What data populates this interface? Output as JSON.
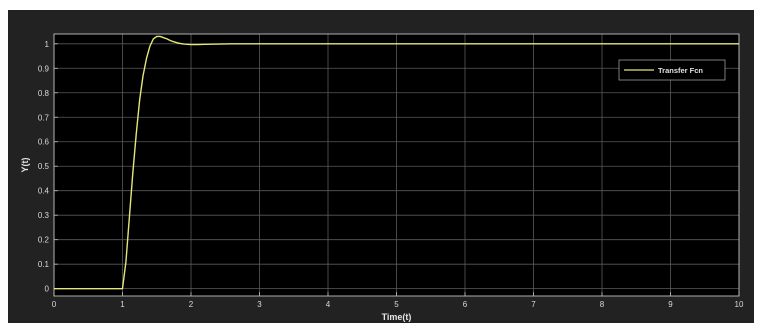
{
  "chart_data": {
    "type": "line",
    "xlabel": "Time(t)",
    "ylabel": "Y(t)",
    "xlim": [
      0,
      10
    ],
    "ylim": [
      -0.03,
      1.04
    ],
    "xticks": [
      "0",
      "1",
      "2",
      "3",
      "4",
      "5",
      "6",
      "7",
      "8",
      "9",
      "10"
    ],
    "yticks": [
      "0",
      "0.1",
      "0.2",
      "0.3",
      "0.4",
      "0.5",
      "0.6",
      "0.7",
      "0.8",
      "0.9",
      "1"
    ],
    "grid": true,
    "legend_position": "top-right",
    "colors": {
      "figure_bg": "#222222",
      "plot_bg": "#000000",
      "grid": "#5a5a5a",
      "axis": "#bfbfbf",
      "line": "#e6e67a"
    },
    "series": [
      {
        "name": "Transfer Fcn",
        "x": [
          0,
          1,
          1.05,
          1.1,
          1.15,
          1.2,
          1.25,
          1.3,
          1.35,
          1.4,
          1.45,
          1.5,
          1.55,
          1.6,
          1.65,
          1.7,
          1.75,
          1.8,
          1.85,
          1.9,
          1.95,
          2.0,
          2.1,
          2.2,
          2.4,
          2.6,
          3,
          4,
          5,
          6,
          7,
          8,
          9,
          10
        ],
        "y": [
          0,
          0,
          0.11,
          0.29,
          0.47,
          0.63,
          0.77,
          0.87,
          0.94,
          0.99,
          1.02,
          1.03,
          1.03,
          1.025,
          1.02,
          1.013,
          1.008,
          1.004,
          1.001,
          0.999,
          0.998,
          0.997,
          0.997,
          0.998,
          0.999,
          1.0,
          1.0,
          1.0,
          1.0,
          1.0,
          1.0,
          1.0,
          1.0,
          1.0
        ]
      }
    ]
  }
}
